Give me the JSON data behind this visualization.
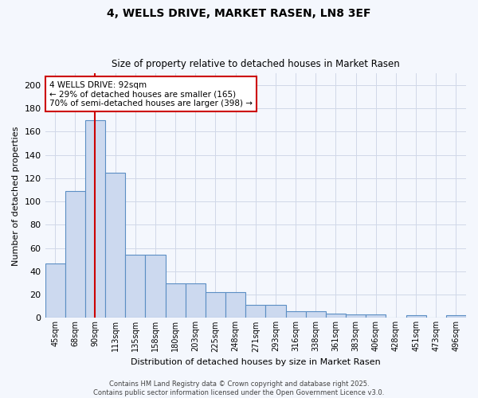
{
  "title": "4, WELLS DRIVE, MARKET RASEN, LN8 3EF",
  "subtitle": "Size of property relative to detached houses in Market Rasen",
  "xlabel": "Distribution of detached houses by size in Market Rasen",
  "ylabel": "Number of detached properties",
  "bar_labels": [
    "45sqm",
    "68sqm",
    "90sqm",
    "113sqm",
    "135sqm",
    "158sqm",
    "180sqm",
    "203sqm",
    "225sqm",
    "248sqm",
    "271sqm",
    "293sqm",
    "316sqm",
    "338sqm",
    "361sqm",
    "383sqm",
    "406sqm",
    "428sqm",
    "451sqm",
    "473sqm",
    "496sqm"
  ],
  "bar_values": [
    47,
    109,
    170,
    125,
    54,
    54,
    30,
    30,
    22,
    22,
    11,
    11,
    6,
    6,
    4,
    3,
    3,
    0,
    2,
    0,
    2
  ],
  "bar_color": "#ccd9ef",
  "bar_edge_color": "#5b8ec4",
  "vline_x": 2,
  "vline_color": "#cc0000",
  "annotation_text": "4 WELLS DRIVE: 92sqm\n← 29% of detached houses are smaller (165)\n70% of semi-detached houses are larger (398) →",
  "annotation_box_color": "#ffffff",
  "annotation_box_edge": "#cc0000",
  "ylim": [
    0,
    210
  ],
  "yticks": [
    0,
    20,
    40,
    60,
    80,
    100,
    120,
    140,
    160,
    180,
    200
  ],
  "grid_color": "#d0d8e8",
  "background_color": "#f4f7fd",
  "footer": "Contains HM Land Registry data © Crown copyright and database right 2025.\nContains public sector information licensed under the Open Government Licence v3.0."
}
